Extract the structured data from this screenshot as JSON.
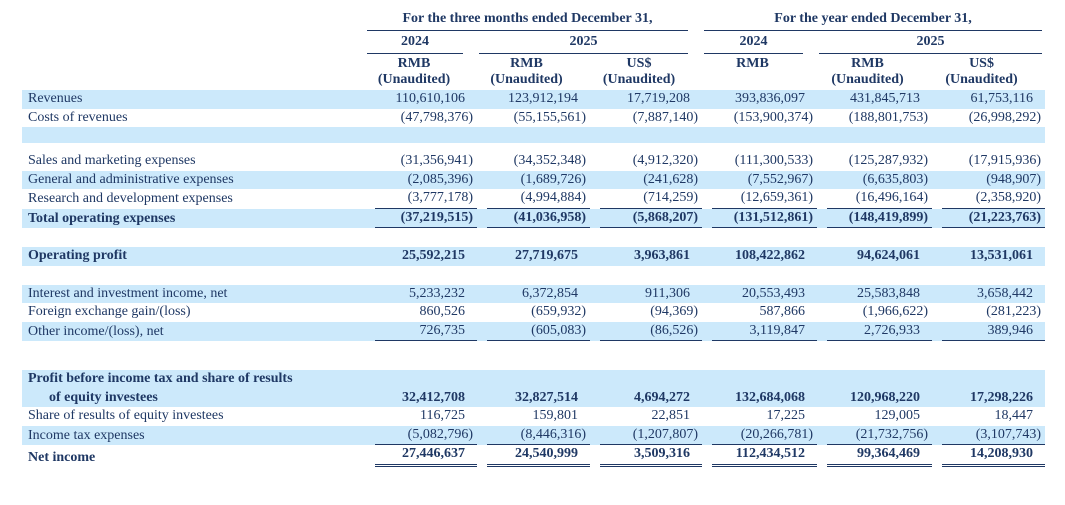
{
  "page": {
    "stripe_color": "#cce9fb",
    "text_color": "#1f3864",
    "background": "#ffffff"
  },
  "table": {
    "column_groups": [
      {
        "title": "For the three months ended December 31,",
        "years": [
          {
            "label": "2024"
          },
          {
            "label": "2025"
          }
        ]
      },
      {
        "title": "For the year ended December 31,",
        "years": [
          {
            "label": "2024"
          },
          {
            "label": "2025"
          }
        ]
      }
    ],
    "columns": [
      {
        "currency": "RMB",
        "note": "(Unaudited)"
      },
      {
        "currency": "RMB",
        "note": "(Unaudited)"
      },
      {
        "currency": "US$",
        "note": "(Unaudited)"
      },
      {
        "currency": "RMB",
        "note": ""
      },
      {
        "currency": "RMB",
        "note": "(Unaudited)"
      },
      {
        "currency": "US$",
        "note": "(Unaudited)"
      }
    ],
    "rows": [
      {
        "type": "data",
        "label": "Revenues",
        "bold": false,
        "indent": false,
        "bg": "blue",
        "underline": "none",
        "values": [
          "110,610,106",
          "123,912,194",
          "17,719,208",
          "393,836,097",
          "431,845,713",
          "61,753,116"
        ]
      },
      {
        "type": "data",
        "label": "Costs of revenues",
        "bold": false,
        "indent": false,
        "bg": "white",
        "underline": "none",
        "values": [
          "(47,798,376)",
          "(55,155,561)",
          "(7,887,140)",
          "(153,900,374)",
          "(188,801,753)",
          "(26,998,292)"
        ]
      },
      {
        "type": "spacer",
        "bg": "blue",
        "height": 16
      },
      {
        "type": "spacer",
        "bg": "white",
        "height": 9
      },
      {
        "type": "data",
        "label": "Sales and marketing expenses",
        "bold": false,
        "indent": false,
        "bg": "white",
        "underline": "none",
        "values": [
          "(31,356,941)",
          "(34,352,348)",
          "(4,912,320)",
          "(111,300,533)",
          "(125,287,932)",
          "(17,915,936)"
        ]
      },
      {
        "type": "data",
        "label": "General and administrative expenses",
        "bold": false,
        "indent": false,
        "bg": "blue",
        "underline": "none",
        "values": [
          "(2,085,396)",
          "(1,689,726)",
          "(241,628)",
          "(7,552,967)",
          "(6,635,803)",
          "(948,907)"
        ]
      },
      {
        "type": "data",
        "label": "Research and development expenses",
        "bold": false,
        "indent": false,
        "bg": "white",
        "underline": "single",
        "values": [
          "(3,777,178)",
          "(4,994,884)",
          "(714,259)",
          "(12,659,361)",
          "(16,496,164)",
          "(2,358,920)"
        ]
      },
      {
        "type": "data",
        "label": "Total operating expenses",
        "bold": true,
        "indent": false,
        "bg": "blue",
        "underline": "single",
        "values": [
          "(37,219,515)",
          "(41,036,958)",
          "(5,868,207)",
          "(131,512,861)",
          "(148,419,899)",
          "(21,223,763)"
        ]
      },
      {
        "type": "spacer",
        "bg": "white",
        "height": 19
      },
      {
        "type": "data",
        "label": "Operating profit",
        "bold": true,
        "indent": false,
        "bg": "blue",
        "underline": "none",
        "values": [
          "25,592,215",
          "27,719,675",
          "3,963,861",
          "108,422,862",
          "94,624,061",
          "13,531,061"
        ]
      },
      {
        "type": "spacer",
        "bg": "white",
        "height": 19
      },
      {
        "type": "data",
        "label": "Interest and investment income, net",
        "bold": false,
        "indent": false,
        "bg": "blue",
        "underline": "none",
        "values": [
          "5,233,232",
          "6,372,854",
          "911,306",
          "20,553,493",
          "25,583,848",
          "3,658,442"
        ]
      },
      {
        "type": "data",
        "label": "Foreign exchange gain/(loss)",
        "bold": false,
        "indent": false,
        "bg": "white",
        "underline": "none",
        "values": [
          "860,526",
          "(659,932)",
          "(94,369)",
          "587,866",
          "(1,966,622)",
          "(281,223)"
        ]
      },
      {
        "type": "data",
        "label": "Other income/(loss), net",
        "bold": false,
        "indent": false,
        "bg": "blue",
        "underline": "single",
        "values": [
          "726,735",
          "(605,083)",
          "(86,526)",
          "3,119,847",
          "2,726,933",
          "389,946"
        ]
      },
      {
        "type": "spacer",
        "bg": "white",
        "height": 29
      },
      {
        "type": "data",
        "label": "Profit before income tax and share of results",
        "bold": true,
        "indent": false,
        "bg": "blue",
        "underline": "none",
        "values": [
          "",
          "",
          "",
          "",
          "",
          ""
        ]
      },
      {
        "type": "data",
        "label": "of equity investees",
        "bold": true,
        "indent": true,
        "bg": "blue",
        "underline": "none",
        "values": [
          "32,412,708",
          "32,827,514",
          "4,694,272",
          "132,684,068",
          "120,968,220",
          "17,298,226"
        ]
      },
      {
        "type": "data",
        "label": "Share of results of equity investees",
        "bold": false,
        "indent": false,
        "bg": "white",
        "underline": "none",
        "values": [
          "116,725",
          "159,801",
          "22,851",
          "17,225",
          "129,005",
          "18,447"
        ]
      },
      {
        "type": "data",
        "label": "Income tax expenses",
        "bold": false,
        "indent": false,
        "bg": "blue",
        "underline": "single",
        "values": [
          "(5,082,796)",
          "(8,446,316)",
          "(1,207,807)",
          "(20,266,781)",
          "(21,732,756)",
          "(3,107,743)"
        ]
      },
      {
        "type": "data",
        "label": "Net income",
        "bold": true,
        "indent": false,
        "bg": "white",
        "underline": "double",
        "values": [
          "27,446,637",
          "24,540,999",
          "3,509,316",
          "112,434,512",
          "99,364,469",
          "14,208,930"
        ]
      }
    ]
  }
}
